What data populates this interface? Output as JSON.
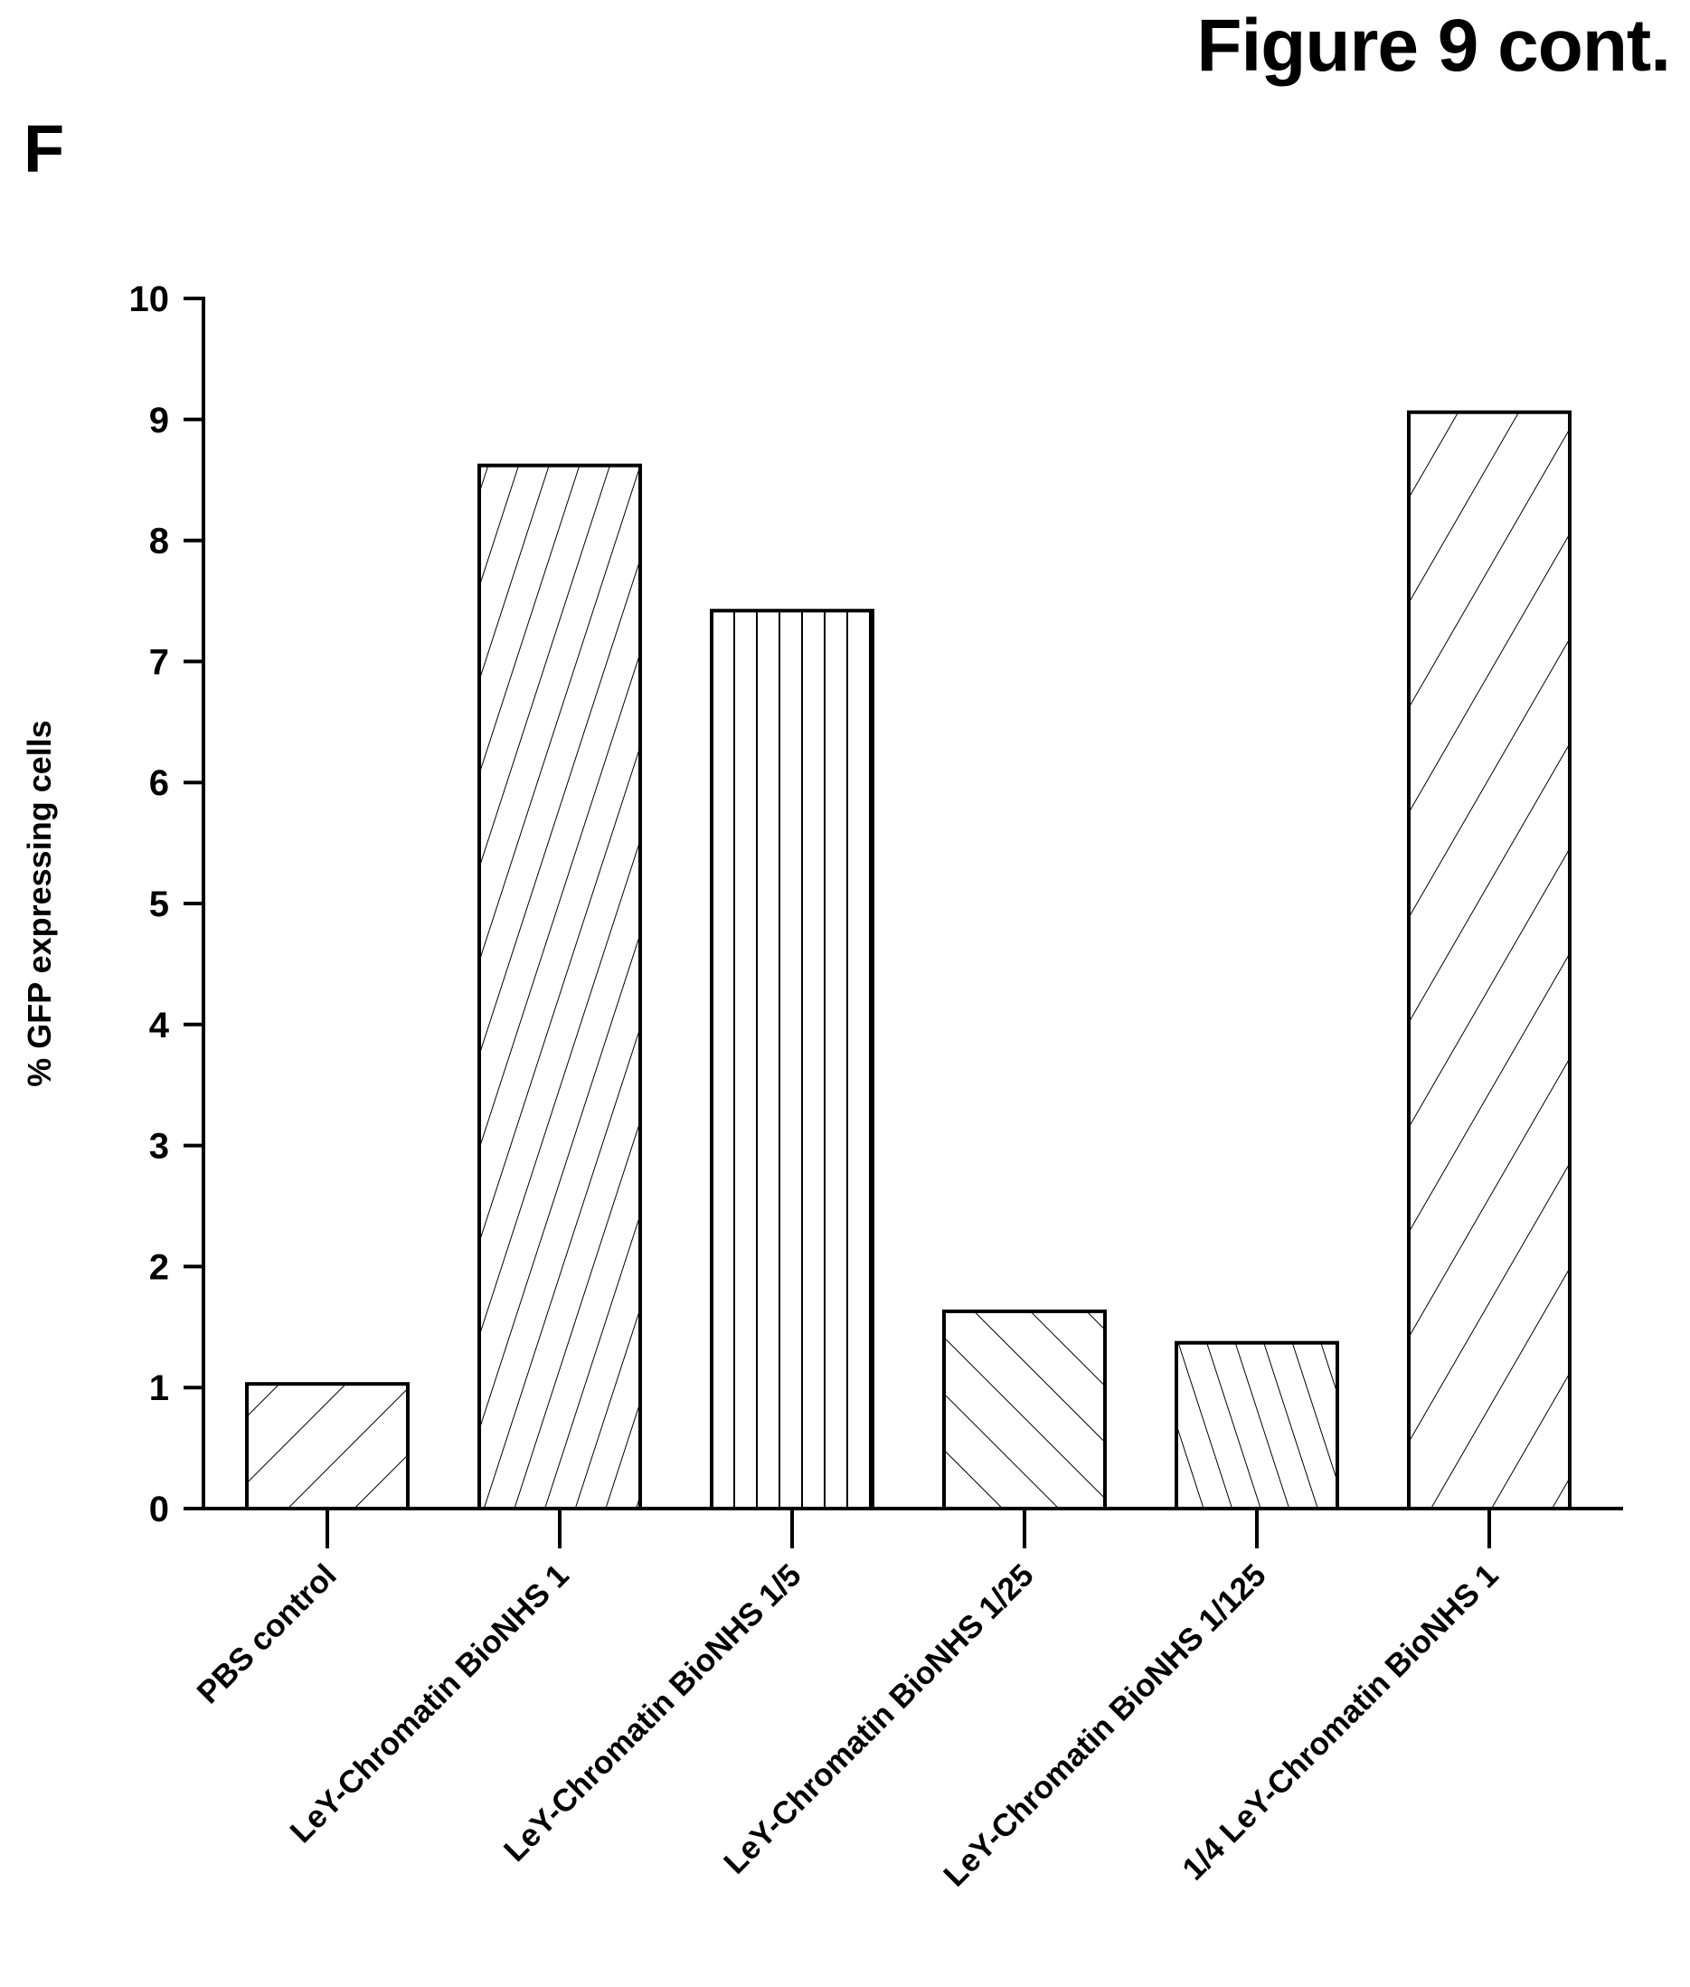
{
  "figure": {
    "label": "Figure 9 cont.",
    "panel": "F"
  },
  "chart_data": {
    "type": "bar",
    "title": "",
    "xlabel": "",
    "ylabel": "% GFP expressing cells",
    "ylim": [
      0,
      10
    ],
    "yticks": [
      0,
      1,
      2,
      3,
      4,
      5,
      6,
      7,
      8,
      9,
      10
    ],
    "grid": false,
    "legend": "none",
    "categories": [
      "PBS control",
      "LeY-Chromatin BioNHS 1",
      "LeY-Chromatin BioNHS 1/5",
      "LeY-Chromatin BioNHS 1/25",
      "LeY-Chromatin BioNHS 1/125",
      "1/4 LeY-Chromatin BioNHS 1"
    ],
    "values": [
      1.03,
      8.62,
      7.42,
      1.63,
      1.37,
      9.06
    ],
    "fill_patterns": [
      "diagonal-up-wide",
      "diagonal-up-steep",
      "vertical-lines",
      "diagonal-down",
      "diagonal-down-steep",
      "diagonal-up"
    ],
    "bar_color": "#ffffff",
    "line_color": "#000000"
  }
}
